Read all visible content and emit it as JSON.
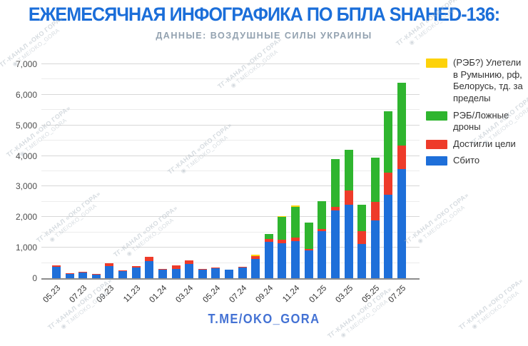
{
  "title": "ЕЖЕМЕСЯЧНАЯ ИНФОГРАФИКА ПО БПЛА SHAHED-136:",
  "subtitle": "ДАННЫЕ: ВОЗДУШНЫЕ СИЛЫ УКРАИНЫ",
  "footer": "T.ME/OKO_GORA",
  "watermark": {
    "line1": "ТГ-КАНАЛ «ОКО ГОРА»",
    "line2": "T.ME/OKO_GORA"
  },
  "colors": {
    "title_blue": "#1b6ed9",
    "footer_blue": "#4472d4",
    "subtitle_gray": "#93a2b0",
    "blue": "#1e6fd9",
    "red": "#ee3b2a",
    "green": "#2fb52f",
    "yellow": "#fdd20a"
  },
  "legend": {
    "items": [
      {
        "color_key": "yellow",
        "label": "(РЭБ?) Улетели в Румынию, рф, Белорусь, тд. за пределы"
      },
      {
        "color_key": "green",
        "label": "РЭБ/Ложные дроны"
      },
      {
        "color_key": "red",
        "label": "Достигли цели"
      },
      {
        "color_key": "blue",
        "label": "Сбито"
      }
    ]
  },
  "chart_data": {
    "type": "bar",
    "stacked": true,
    "title": "ЕЖЕМЕСЯЧНАЯ ИНФОГРАФИКА ПО БПЛА SHAHED-136:",
    "subtitle": "ДАННЫЕ: ВОЗДУШНЫЕ СИЛЫ УКРАИНЫ",
    "xlabel": "",
    "ylabel": "",
    "ylim": [
      0,
      7000
    ],
    "grid": "horizontal",
    "grid_minor_step": 500,
    "grid_major_step": 1000,
    "legend_position": "top-right",
    "y_tick_labels": [
      "0",
      "1,000",
      "2,000",
      "3,000",
      "4,000",
      "5,000",
      "6,000",
      "7,000"
    ],
    "x_tick_every": 2,
    "categories": [
      "05.23",
      "06.23",
      "07.23",
      "08.23",
      "09.23",
      "10.23",
      "11.23",
      "12.23",
      "01.24",
      "02.24",
      "03.24",
      "04.24",
      "05.24",
      "06.24",
      "07.24",
      "08.24",
      "09.24",
      "10.24",
      "11.24",
      "12.24",
      "01.25",
      "02.25",
      "03.25",
      "04.25",
      "05.25",
      "06.25",
      "07.25"
    ],
    "series": [
      {
        "name": "Сбито",
        "color_key": "blue",
        "values": [
          375,
          145,
          185,
          120,
          395,
          235,
          355,
          565,
          285,
          315,
          470,
          270,
          320,
          270,
          350,
          620,
          1190,
          1150,
          1220,
          920,
          1550,
          2210,
          2400,
          1110,
          1900,
          2720,
          3580
        ]
      },
      {
        "name": "Достигли цели",
        "color_key": "red",
        "values": [
          35,
          15,
          25,
          15,
          105,
          25,
          35,
          140,
          30,
          100,
          120,
          30,
          20,
          20,
          30,
          100,
          100,
          100,
          120,
          30,
          60,
          120,
          470,
          430,
          590,
          740,
          770
        ]
      },
      {
        "name": "РЭБ/Ложные дроны",
        "color_key": "green",
        "values": [
          0,
          0,
          0,
          0,
          0,
          0,
          0,
          0,
          0,
          0,
          0,
          0,
          0,
          0,
          0,
          0,
          160,
          750,
          1000,
          860,
          900,
          1570,
          1330,
          860,
          1450,
          1990,
          2040
        ]
      },
      {
        "name": "(РЭБ?) Улетели в Румынию, рф, Белорусь, тд. за пределы",
        "color_key": "yellow",
        "values": [
          0,
          0,
          0,
          0,
          0,
          0,
          0,
          0,
          0,
          0,
          0,
          0,
          0,
          0,
          0,
          40,
          0,
          40,
          40,
          10,
          0,
          0,
          0,
          0,
          0,
          0,
          0
        ]
      }
    ],
    "totals": [
      410,
      160,
      210,
      135,
      500,
      260,
      390,
      705,
      315,
      415,
      590,
      300,
      340,
      290,
      380,
      760,
      1450,
      2040,
      2380,
      1820,
      2510,
      3900,
      4200,
      2400,
      3940,
      5450,
      6390
    ]
  }
}
